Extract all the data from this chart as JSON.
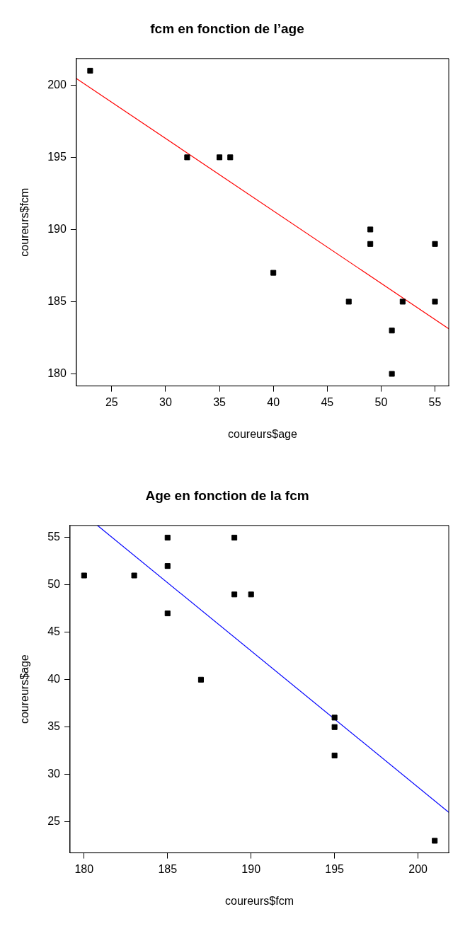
{
  "chart_data": [
    {
      "type": "scatter",
      "title": "fcm en fonction de l’age",
      "xlabel": "coureurs$age",
      "ylabel": "coureurs$fcm",
      "xlim": [
        21.72,
        56.28
      ],
      "ylim": [
        179.16,
        201.84
      ],
      "xticks": [
        25,
        30,
        35,
        40,
        45,
        50,
        55
      ],
      "yticks": [
        180,
        185,
        190,
        195,
        200
      ],
      "series": [
        {
          "color": "#000000",
          "marker": "square",
          "x": [
            23,
            32,
            35,
            36,
            40,
            47,
            49,
            49,
            51,
            51,
            52,
            55,
            55
          ],
          "values": [
            201,
            195,
            195,
            195,
            187,
            185,
            190,
            189,
            183,
            180,
            185,
            189,
            185
          ]
        },
        {
          "type": "line",
          "color": "#ff0000",
          "x": [
            21.72,
            56.28
          ],
          "values": [
            200.46,
            183.12
          ]
        }
      ]
    },
    {
      "type": "scatter",
      "title": "Age en fonction de la fcm",
      "xlabel": "coureurs$fcm",
      "ylabel": "coureurs$age",
      "xlim": [
        179.16,
        201.84
      ],
      "ylim": [
        21.72,
        56.28
      ],
      "xticks": [
        180,
        185,
        190,
        195,
        200
      ],
      "yticks": [
        25,
        30,
        35,
        40,
        45,
        50,
        55
      ],
      "series": [
        {
          "color": "#000000",
          "marker": "square",
          "x": [
            180,
            183,
            185,
            185,
            185,
            187,
            189,
            189,
            190,
            195,
            195,
            195,
            201
          ],
          "values": [
            51,
            51,
            55,
            52,
            47,
            40,
            55,
            49,
            49,
            36,
            35,
            32,
            23
          ]
        },
        {
          "type": "line",
          "color": "#0000ff",
          "x": [
            180.8,
            201.84
          ],
          "values": [
            56.28,
            26.0
          ]
        }
      ]
    }
  ]
}
